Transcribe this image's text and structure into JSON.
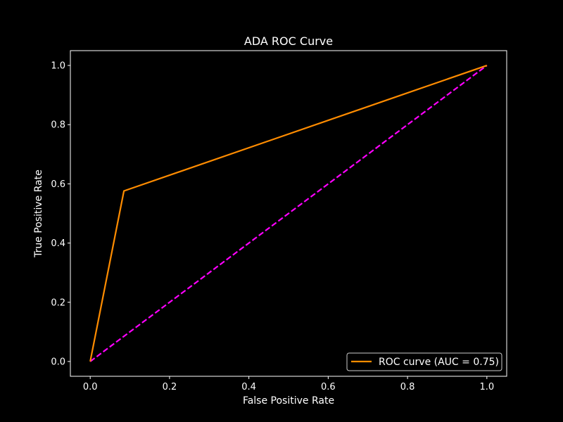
{
  "chart_data": {
    "type": "line",
    "title": "ADA ROC Curve",
    "xlabel": "False Positive Rate",
    "ylabel": "True Positive Rate",
    "xlim": [
      -0.05,
      1.05
    ],
    "ylim": [
      -0.05,
      1.05
    ],
    "x_ticks": [
      "0.0",
      "0.2",
      "0.4",
      "0.6",
      "0.8",
      "1.0"
    ],
    "y_ticks": [
      "0.0",
      "0.2",
      "0.4",
      "0.6",
      "0.8",
      "1.0"
    ],
    "grid": false,
    "legend_position": "lower-right",
    "series": [
      {
        "name": "ROC curve (AUC = 0.75)",
        "color": "#ff8c00",
        "style": "solid",
        "x": [
          0.0,
          0.085,
          1.0
        ],
        "y": [
          0.0,
          0.576,
          1.0
        ]
      },
      {
        "color": "#ff00ff",
        "style": "dashed",
        "x": [
          0.0,
          1.0
        ],
        "y": [
          0.0,
          1.0
        ]
      }
    ]
  },
  "colors": {
    "background": "#000000",
    "foreground": "#ffffff"
  }
}
